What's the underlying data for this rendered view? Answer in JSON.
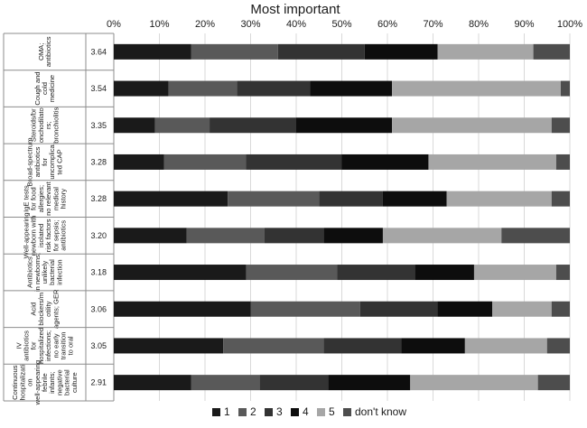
{
  "chart_data": {
    "type": "bar",
    "orientation": "horizontal",
    "stacked": true,
    "title": "Most important",
    "xlim": [
      0,
      100
    ],
    "x_ticks": [
      "0%",
      "10%",
      "20%",
      "30%",
      "40%",
      "50%",
      "60%",
      "70%",
      "80%",
      "90%",
      "100%"
    ],
    "grid": true,
    "legend_position": "bottom",
    "categories": [
      {
        "label": "OMA; antibiotics",
        "score": "3.64"
      },
      {
        "label": "Cough and cold medicine",
        "score": "3.54"
      },
      {
        "label": "Steroids/br onchodilato rs; bronchiolitis",
        "score": "3.35"
      },
      {
        "label": "Broad-spectrum antibiotics for uncomplica ted CAP",
        "score": "3.28"
      },
      {
        "label": "IgE tests for food allergies; no relevant medical history",
        "score": "3.28"
      },
      {
        "label": "Well-appearing newborn with isolated risk factors for sepsis; antibiotics",
        "score": "3.20"
      },
      {
        "label": "Antibiotics in newborns; unlikely bacterial infection",
        "score": "3.18"
      },
      {
        "label": "Acid blockers/m otility agents; GER",
        "score": "3.06"
      },
      {
        "label": "IV antibiotics for hospitalized infections; no early transition to oral",
        "score": "3.05"
      },
      {
        "label": "Continuous hospitalizati on well-appearing febrile infants; negative bacterial culture",
        "score": "2.91"
      }
    ],
    "series": [
      {
        "name": "1",
        "color": "#1a1a1a",
        "values": [
          17,
          12,
          9,
          11,
          25,
          16,
          29,
          30,
          24,
          17
        ]
      },
      {
        "name": "2",
        "color": "#595959",
        "values": [
          19,
          15,
          12,
          18,
          20,
          17,
          20,
          24,
          22,
          15
        ]
      },
      {
        "name": "3",
        "color": "#333333",
        "values": [
          19,
          16,
          19,
          21,
          14,
          13,
          17,
          17,
          17,
          15
        ]
      },
      {
        "name": "4",
        "color": "#0d0d0d",
        "values": [
          16,
          18,
          21,
          19,
          14,
          13,
          13,
          12,
          14,
          18
        ]
      },
      {
        "name": "5",
        "color": "#a6a6a6",
        "values": [
          21,
          37,
          35,
          28,
          23,
          26,
          18,
          13,
          18,
          28
        ]
      },
      {
        "name": "don't know",
        "color": "#4d4d4d",
        "values": [
          8,
          2,
          4,
          3,
          4,
          15,
          3,
          4,
          5,
          7
        ]
      }
    ]
  }
}
